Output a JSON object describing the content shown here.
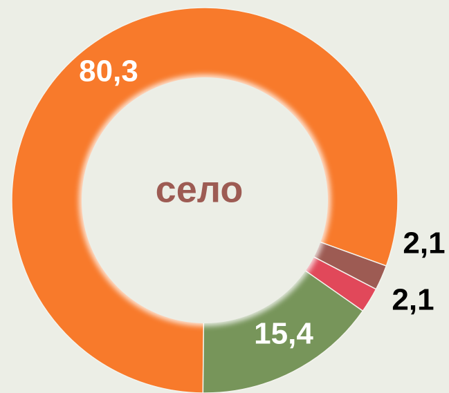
{
  "chart_data": {
    "type": "donut",
    "center_label": "село",
    "categories": [
      null,
      null,
      null,
      null
    ],
    "values": [
      80.3,
      2.1,
      2.1,
      15.4
    ],
    "value_labels": [
      "80,3",
      "2,1",
      "2,1",
      "15,4"
    ],
    "colors": [
      "#f87a2b",
      "#9d5b53",
      "#e1485a",
      "#77955a"
    ]
  }
}
